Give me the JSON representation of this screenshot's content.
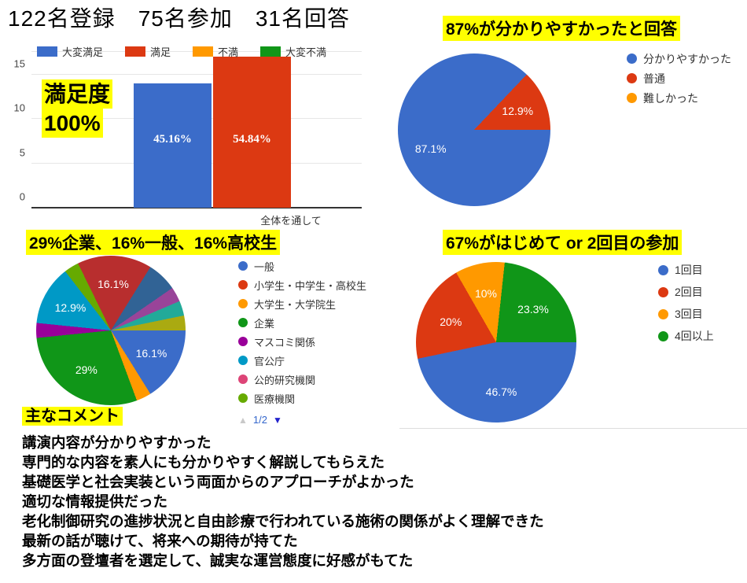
{
  "page": {
    "title": "122名登録　75名参加　31名回答"
  },
  "satisfaction_chart": {
    "annotation_line1": "満足度",
    "annotation_line2": "100%",
    "chart_data": {
      "type": "bar",
      "categories": [
        "全体を通して"
      ],
      "series": [
        {
          "name": "大変満足",
          "color": "#3B6CC9",
          "values": [
            14
          ],
          "data_label": "45.16%"
        },
        {
          "name": "満足",
          "color": "#DC3912",
          "values": [
            17
          ],
          "data_label": "54.84%"
        },
        {
          "name": "不満",
          "color": "#FF9900",
          "values": [
            0
          ],
          "data_label": ""
        },
        {
          "name": "大変不満",
          "color": "#109618",
          "values": [
            0
          ],
          "data_label": ""
        }
      ],
      "xlabel": "全体を通して",
      "ylabel": "",
      "ylim": [
        0,
        17
      ],
      "yticks": [
        0,
        5,
        10,
        15
      ],
      "grid": true,
      "legend_position": "top"
    }
  },
  "clarity_chart": {
    "title": "87%が分かりやすかったと回答",
    "chart_data": {
      "type": "pie",
      "start_at": "3-oclock",
      "direction": "clockwise",
      "slices": [
        {
          "label": "分かりやすかった",
          "pct": 87.1,
          "color": "#3B6CC9",
          "data_label": "87.1%"
        },
        {
          "label": "普通",
          "pct": 12.9,
          "color": "#DC3912",
          "data_label": "12.9%"
        },
        {
          "label": "難しかった",
          "pct": 0,
          "color": "#FF9900",
          "data_label": ""
        }
      ],
      "legend": [
        {
          "label": "分かりやすかった",
          "color": "#3B6CC9"
        },
        {
          "label": "普通",
          "color": "#DC3912"
        },
        {
          "label": "難しかった",
          "color": "#FF9900"
        }
      ],
      "legend_position": "right"
    }
  },
  "audience_chart": {
    "title": "29%企業、16%一般、16%高校生",
    "chart_data": {
      "type": "pie",
      "start_at": "3-oclock",
      "direction": "clockwise",
      "slices": [
        {
          "label": "一般",
          "pct": 16.1,
          "color": "#3B6CC9",
          "data_label": "16.1%"
        },
        {
          "label": "大学生・大学院生",
          "pct": 3.2,
          "color": "#FF9900",
          "data_label": ""
        },
        {
          "label": "企業",
          "pct": 29,
          "color": "#109618",
          "data_label": "29%"
        },
        {
          "label": "マスコミ関係",
          "pct": 3.2,
          "color": "#990099",
          "data_label": ""
        },
        {
          "label": "官公庁",
          "pct": 12.9,
          "color": "#0099C6",
          "data_label": "12.9%"
        },
        {
          "label": "医療機関",
          "pct": 3.2,
          "color": "#66AA00",
          "data_label": ""
        },
        {
          "label": "",
          "pct": 16.1,
          "color": "#B82E2E",
          "data_label": "16.1%"
        },
        {
          "label": "",
          "pct": 6.5,
          "color": "#316395",
          "data_label": ""
        },
        {
          "label": "",
          "pct": 3.2,
          "color": "#994499",
          "data_label": ""
        },
        {
          "label": "",
          "pct": 3.2,
          "color": "#22AA99",
          "data_label": ""
        },
        {
          "label": "",
          "pct": 3.2,
          "color": "#AAAA11",
          "data_label": ""
        }
      ],
      "legend": [
        {
          "label": "一般",
          "color": "#3B6CC9"
        },
        {
          "label": "小学生・中学生・高校生",
          "color": "#DC3912"
        },
        {
          "label": "大学生・大学院生",
          "color": "#FF9900"
        },
        {
          "label": "企業",
          "color": "#109618"
        },
        {
          "label": "マスコミ関係",
          "color": "#990099"
        },
        {
          "label": "官公庁",
          "color": "#0099C6"
        },
        {
          "label": "公的研究機関",
          "color": "#DD4477"
        },
        {
          "label": "医療機関",
          "color": "#66AA00"
        }
      ],
      "legend_position": "right",
      "legend_pagination": {
        "page": "1/2",
        "up_symbol": "▲",
        "down_symbol": "▼"
      }
    }
  },
  "attendance_chart": {
    "title": "67%がはじめて or 2回目の参加",
    "chart_data": {
      "type": "pie",
      "start_at": "3-oclock",
      "direction": "clockwise",
      "slices": [
        {
          "label": "1回目",
          "pct": 46.7,
          "color": "#3B6CC9",
          "data_label": "46.7%"
        },
        {
          "label": "2回目",
          "pct": 20,
          "color": "#DC3912",
          "data_label": "20%"
        },
        {
          "label": "3回目",
          "pct": 10,
          "color": "#FF9900",
          "data_label": "10%"
        },
        {
          "label": "4回以上",
          "pct": 23.3,
          "color": "#109618",
          "data_label": "23.3%"
        }
      ],
      "legend": [
        {
          "label": "1回目",
          "color": "#3B6CC9"
        },
        {
          "label": "2回目",
          "color": "#DC3912"
        },
        {
          "label": "3回目",
          "color": "#FF9900"
        },
        {
          "label": "4回以上",
          "color": "#109618"
        }
      ],
      "legend_position": "right"
    }
  },
  "comments": {
    "heading": "主なコメント",
    "items": [
      "講演内容が分かりやすかった",
      "専門的な内容を素人にも分かりやすく解説してもらえた",
      "基礎医学と社会実装という両面からのアプローチがよかった",
      "適切な情報提供だった",
      "老化制御研究の進捗状況と自由診療で行われている施術の関係がよく理解できた",
      "最新の話が聴けて、将来への期待が持てた",
      "多方面の登壇者を選定して、誠実な運営態度に好感がもてた"
    ]
  }
}
